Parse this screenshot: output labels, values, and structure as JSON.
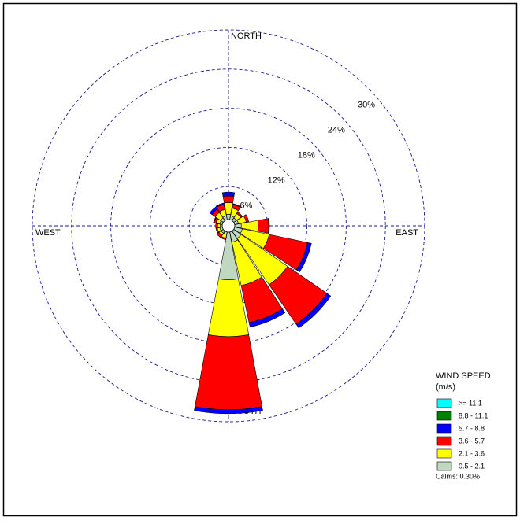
{
  "chart_data": {
    "type": "windrose",
    "compass_labels": [
      "NORTH",
      "EAST",
      "SOUTH",
      "WEST"
    ],
    "categories": [
      null,
      null,
      null,
      null,
      null,
      null,
      null,
      null,
      null,
      null,
      null,
      null,
      null,
      null,
      null,
      null
    ],
    "series": [
      {
        "name": "0.5 - 2.1",
        "color": "#c0d8c0",
        "values": [
          0.8,
          0.6,
          0.5,
          0.6,
          1.0,
          1.2,
          1.4,
          1.6,
          7.3,
          0.4,
          0.4,
          0.4,
          0.3,
          0.4,
          0.5,
          0.6
        ]
      },
      {
        "name": "2.1 - 3.6",
        "color": "#ffff00",
        "values": [
          1.8,
          1.2,
          0.8,
          1.2,
          2.6,
          4.2,
          8.6,
          6.8,
          8.7,
          0.6,
          0.4,
          0.4,
          0.4,
          0.6,
          1.0,
          1.0
        ]
      },
      {
        "name": "3.6 - 5.7",
        "color": "#ff0000",
        "values": [
          1.0,
          0.6,
          0.3,
          0.4,
          1.6,
          6.0,
          7.3,
          5.8,
          11.2,
          0.2,
          0.4,
          0.2,
          0.3,
          0.3,
          0.6,
          0.8
        ]
      },
      {
        "name": "5.7 - 8.8",
        "color": "#0000ff",
        "values": [
          0.6,
          0.1,
          0,
          0,
          0.1,
          0.6,
          0.7,
          0.7,
          0.6,
          0,
          0,
          0,
          0,
          0.1,
          0.4,
          0.2
        ]
      },
      {
        "name": "8.8 - 11.1",
        "color": "#008000",
        "values": [
          0,
          0,
          0,
          0,
          0,
          0,
          0,
          0,
          0,
          0,
          0,
          0,
          0,
          0,
          0,
          0
        ]
      },
      {
        "name": ">= 11.1",
        "color": "#00ffff",
        "values": [
          0,
          0,
          0,
          0,
          0,
          0,
          0,
          0,
          0,
          0,
          0,
          0,
          0,
          0,
          0,
          0
        ]
      }
    ],
    "rlim": [
      0,
      30
    ],
    "rticks": [
      {
        "value": 6,
        "label": "6%"
      },
      {
        "value": 12,
        "label": "12%"
      },
      {
        "value": 18,
        "label": "18%"
      },
      {
        "value": 24,
        "label": "24%"
      },
      {
        "value": 30,
        "label": "30%"
      }
    ],
    "legend_title": "WIND SPEED",
    "legend_subtitle": "(m/s)",
    "calms_label": "Calms: 0.30%"
  }
}
